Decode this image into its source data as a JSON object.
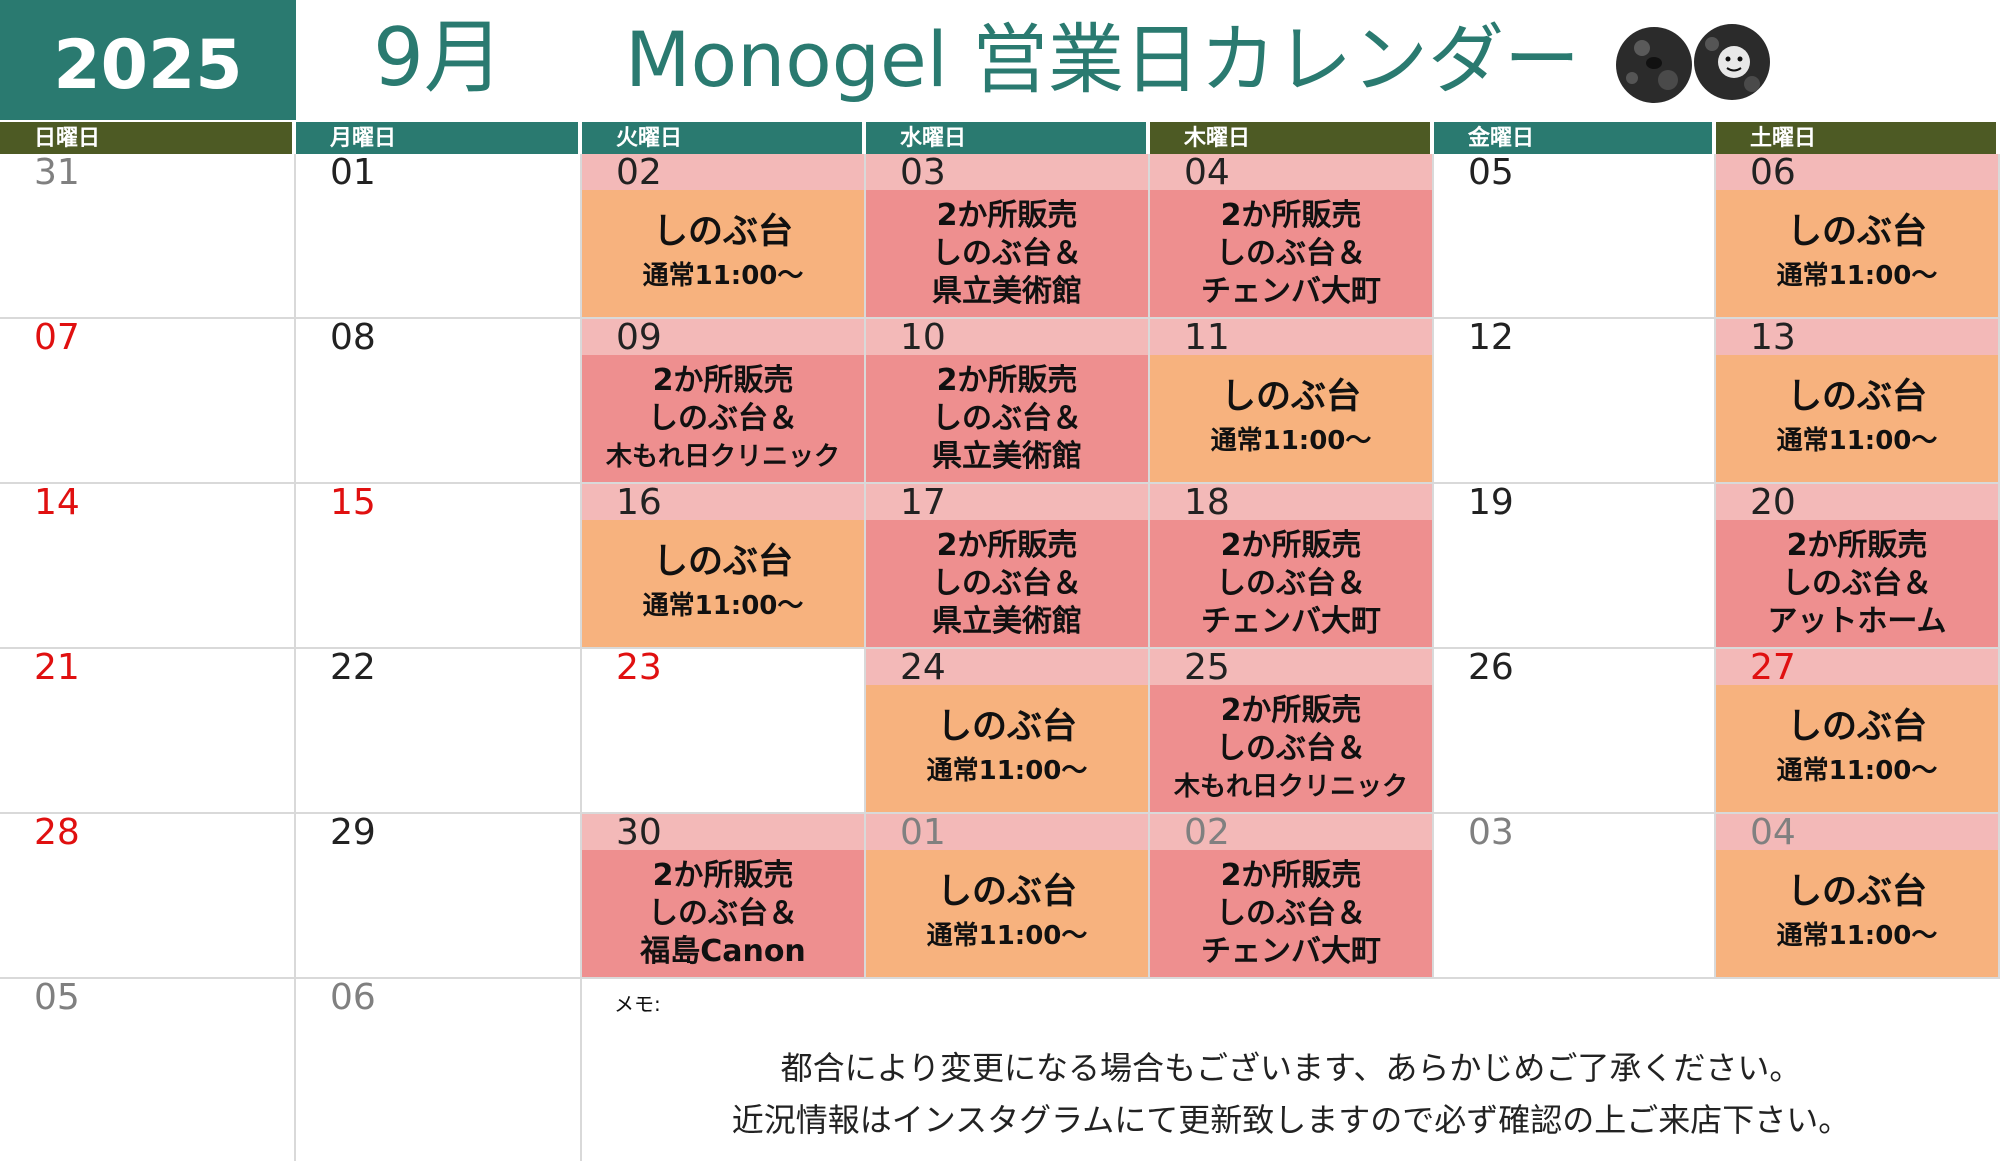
{
  "header": {
    "year": "2025",
    "month": "9月",
    "title": "Monogel 営業日カレンダー"
  },
  "colors": {
    "teal": "#2a7a70",
    "olive": "#4d5a24",
    "regular_event": "#f7b27e",
    "dual_event": "#ee8f8f",
    "open_date_bar": "#f3b9b8",
    "holiday_red": "#e01010",
    "other_month_gray": "#808080"
  },
  "weekdays": [
    "日曜日",
    "月曜日",
    "火曜日",
    "水曜日",
    "木曜日",
    "金曜日",
    "土曜日"
  ],
  "weekday_colors": [
    "olive",
    "teal",
    "teal",
    "teal",
    "olive",
    "teal",
    "olive"
  ],
  "weeks": [
    [
      {
        "day": "31",
        "tone": "gray"
      },
      {
        "day": "01",
        "tone": "normal"
      },
      {
        "day": "02",
        "tone": "normal",
        "event": {
          "type": "regular",
          "lines": [
            "しのぶ台",
            "通常11:00～"
          ]
        }
      },
      {
        "day": "03",
        "tone": "normal",
        "event": {
          "type": "dual",
          "lines": [
            "2か所販売",
            "しのぶ台＆",
            "県立美術館"
          ]
        }
      },
      {
        "day": "04",
        "tone": "normal",
        "event": {
          "type": "dual",
          "lines": [
            "2か所販売",
            "しのぶ台＆",
            "チェンバ大町"
          ]
        }
      },
      {
        "day": "05",
        "tone": "normal"
      },
      {
        "day": "06",
        "tone": "normal",
        "event": {
          "type": "regular",
          "lines": [
            "しのぶ台",
            "通常11:00～"
          ]
        }
      }
    ],
    [
      {
        "day": "07",
        "tone": "red"
      },
      {
        "day": "08",
        "tone": "normal"
      },
      {
        "day": "09",
        "tone": "normal",
        "event": {
          "type": "dual",
          "lines": [
            "2か所販売",
            "しのぶ台＆",
            "木もれ日クリニック"
          ]
        }
      },
      {
        "day": "10",
        "tone": "normal",
        "event": {
          "type": "dual",
          "lines": [
            "2か所販売",
            "しのぶ台＆",
            "県立美術館"
          ]
        }
      },
      {
        "day": "11",
        "tone": "normal",
        "event": {
          "type": "regular",
          "lines": [
            "しのぶ台",
            "通常11:00～"
          ]
        }
      },
      {
        "day": "12",
        "tone": "normal"
      },
      {
        "day": "13",
        "tone": "normal",
        "event": {
          "type": "regular",
          "lines": [
            "しのぶ台",
            "通常11:00～"
          ]
        }
      }
    ],
    [
      {
        "day": "14",
        "tone": "red"
      },
      {
        "day": "15",
        "tone": "red"
      },
      {
        "day": "16",
        "tone": "normal",
        "event": {
          "type": "regular",
          "lines": [
            "しのぶ台",
            "通常11:00～"
          ]
        }
      },
      {
        "day": "17",
        "tone": "normal",
        "event": {
          "type": "dual",
          "lines": [
            "2か所販売",
            "しのぶ台＆",
            "県立美術館"
          ]
        }
      },
      {
        "day": "18",
        "tone": "normal",
        "event": {
          "type": "dual",
          "lines": [
            "2か所販売",
            "しのぶ台＆",
            "チェンバ大町"
          ]
        }
      },
      {
        "day": "19",
        "tone": "normal"
      },
      {
        "day": "20",
        "tone": "normal",
        "event": {
          "type": "dual",
          "lines": [
            "2か所販売",
            "しのぶ台＆",
            "アットホーム"
          ]
        }
      }
    ],
    [
      {
        "day": "21",
        "tone": "red"
      },
      {
        "day": "22",
        "tone": "normal"
      },
      {
        "day": "23",
        "tone": "red"
      },
      {
        "day": "24",
        "tone": "normal",
        "event": {
          "type": "regular",
          "lines": [
            "しのぶ台",
            "通常11:00～"
          ]
        }
      },
      {
        "day": "25",
        "tone": "normal",
        "event": {
          "type": "dual",
          "lines": [
            "2か所販売",
            "しのぶ台＆",
            "木もれ日クリニック"
          ]
        }
      },
      {
        "day": "26",
        "tone": "normal"
      },
      {
        "day": "27",
        "tone": "red",
        "event": {
          "type": "regular",
          "lines": [
            "しのぶ台",
            "通常11:00～"
          ]
        }
      }
    ],
    [
      {
        "day": "28",
        "tone": "red"
      },
      {
        "day": "29",
        "tone": "normal"
      },
      {
        "day": "30",
        "tone": "normal",
        "event": {
          "type": "dual",
          "lines": [
            "2か所販売",
            "しのぶ台＆",
            "福島Canon"
          ]
        }
      },
      {
        "day": "01",
        "tone": "gray",
        "event": {
          "type": "regular",
          "lines": [
            "しのぶ台",
            "通常11:00～"
          ]
        }
      },
      {
        "day": "02",
        "tone": "gray",
        "event": {
          "type": "dual",
          "lines": [
            "2か所販売",
            "しのぶ台＆",
            "チェンバ大町"
          ]
        }
      },
      {
        "day": "03",
        "tone": "gray"
      },
      {
        "day": "04",
        "tone": "gray",
        "event": {
          "type": "regular",
          "lines": [
            "しのぶ台",
            "通常11:00～"
          ]
        }
      }
    ],
    [
      {
        "day": "05",
        "tone": "gray"
      },
      {
        "day": "06",
        "tone": "gray"
      }
    ]
  ],
  "memo": {
    "label": "メモ:",
    "lines": [
      "都合により変更になる場合もございます、あらかじめご了承ください。",
      "近況情報はインスタグラムにて更新致しますので必ず確認の上ご来店下さい。"
    ]
  },
  "mascot_icon": "two-faces-illustration-icon"
}
